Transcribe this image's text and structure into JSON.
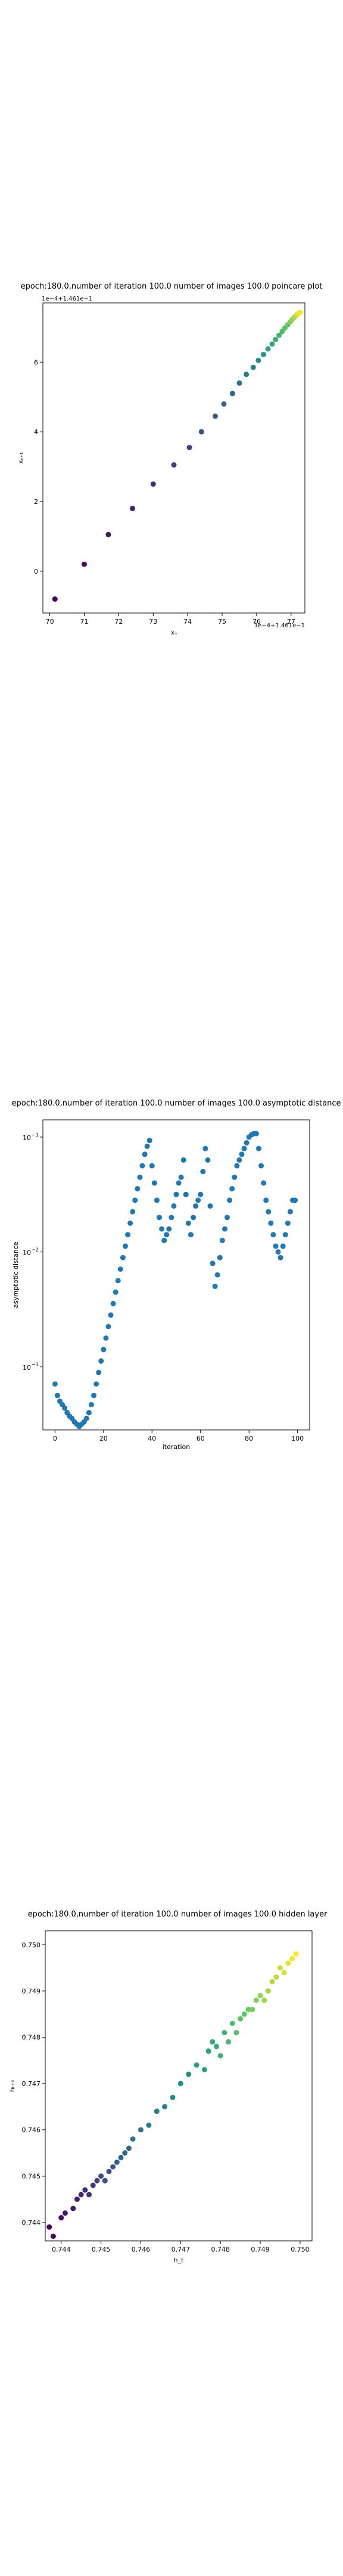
{
  "chart_data": [
    {
      "type": "scatter",
      "title": "epoch:180.0,number of iteration 100.0 number of images 100.0 poincare plot",
      "xlabel": "xₙ",
      "ylabel": "xₙ₊₁",
      "x_ticks": [
        "70",
        "71",
        "72",
        "73",
        "74",
        "75",
        "76",
        "77"
      ],
      "x_tick_values": [
        70,
        71,
        72,
        73,
        74,
        75,
        76,
        77
      ],
      "y_ticks": [
        "0",
        "2",
        "4",
        "6"
      ],
      "y_tick_values": [
        0,
        2,
        4,
        6
      ],
      "x_offset_label": "1e−4+1.461e−1",
      "y_offset_label": "1e−4+1.461e−1",
      "xlim": [
        69.8,
        77.4
      ],
      "ylim": [
        -1.2,
        7.7
      ],
      "colormap": [
        "#440154",
        "#3b528b",
        "#21918c",
        "#5ec962",
        "#fde725"
      ],
      "x": [
        70.15,
        71.0,
        71.7,
        72.4,
        73.0,
        73.6,
        74.05,
        74.4,
        74.8,
        75.05,
        75.3,
        75.5,
        75.7,
        75.9,
        76.05,
        76.2,
        76.33,
        76.45,
        76.55,
        76.65,
        76.74,
        76.82,
        76.9,
        76.97,
        77.03,
        77.09,
        77.14,
        77.18,
        77.22,
        77.26
      ],
      "y": [
        -0.8,
        0.2,
        1.05,
        1.8,
        2.5,
        3.05,
        3.55,
        4.0,
        4.45,
        4.8,
        5.1,
        5.4,
        5.65,
        5.85,
        6.05,
        6.22,
        6.38,
        6.52,
        6.65,
        6.77,
        6.88,
        6.98,
        7.07,
        7.15,
        7.22,
        7.28,
        7.33,
        7.37,
        7.4,
        7.43
      ]
    },
    {
      "type": "scatter",
      "title": "epoch:180.0,number of iteration 100.0  number of images 100.0 asymptotic distance",
      "xlabel": "iteration",
      "ylabel": "asymptotic distance",
      "x_ticks": [
        "0",
        "20",
        "40",
        "60",
        "80",
        "100"
      ],
      "x_tick_values": [
        0,
        20,
        40,
        60,
        80,
        100
      ],
      "y_ticks_base": [
        "10",
        "10",
        "10"
      ],
      "y_ticks_exp": [
        "−3",
        "−2",
        "−1"
      ],
      "y_tick_values": [
        -3,
        -2,
        -1
      ],
      "log_y": true,
      "color": "#1f77b4",
      "xlim": [
        -5,
        105
      ],
      "ylim_log10": [
        -3.55,
        -0.85
      ],
      "x": [
        0,
        1,
        2,
        3,
        4,
        5,
        6,
        7,
        8,
        9,
        10,
        11,
        12,
        13,
        14,
        15,
        16,
        17,
        18,
        19,
        20,
        21,
        22,
        23,
        24,
        25,
        26,
        27,
        28,
        29,
        30,
        31,
        32,
        33,
        34,
        35,
        36,
        37,
        38,
        39,
        40,
        41,
        42,
        43,
        44,
        45,
        46,
        47,
        48,
        49,
        50,
        51,
        52,
        53,
        54,
        55,
        56,
        57,
        58,
        59,
        60,
        61,
        62,
        63,
        64,
        65,
        66,
        67,
        68,
        69,
        70,
        71,
        72,
        73,
        74,
        75,
        76,
        77,
        78,
        79,
        80,
        81,
        82,
        83,
        84,
        85,
        86,
        87,
        88,
        89,
        90,
        91,
        92,
        93,
        94,
        95,
        96,
        97,
        98,
        99
      ],
      "y_log10": [
        -3.15,
        -3.25,
        -3.3,
        -3.33,
        -3.36,
        -3.4,
        -3.43,
        -3.45,
        -3.48,
        -3.5,
        -3.52,
        -3.5,
        -3.48,
        -3.45,
        -3.4,
        -3.33,
        -3.25,
        -3.15,
        -3.05,
        -2.95,
        -2.85,
        -2.75,
        -2.65,
        -2.55,
        -2.45,
        -2.35,
        -2.25,
        -2.15,
        -2.05,
        -1.95,
        -1.85,
        -1.75,
        -1.65,
        -1.55,
        -1.45,
        -1.35,
        -1.25,
        -1.15,
        -1.08,
        -1.03,
        -1.25,
        -1.4,
        -1.55,
        -1.7,
        -1.8,
        -1.9,
        -1.85,
        -1.8,
        -1.7,
        -1.6,
        -1.5,
        -1.4,
        -1.35,
        -1.2,
        -1.5,
        -1.75,
        -1.85,
        -1.7,
        -1.6,
        -1.55,
        -1.5,
        -1.3,
        -1.1,
        -1.2,
        -1.6,
        -2.1,
        -2.3,
        -2.2,
        -2.05,
        -1.9,
        -1.8,
        -1.7,
        -1.55,
        -1.45,
        -1.35,
        -1.25,
        -1.2,
        -1.15,
        -1.1,
        -1.05,
        -1.0,
        -0.98,
        -0.97,
        -0.97,
        -1.1,
        -1.25,
        -1.4,
        -1.55,
        -1.65,
        -1.75,
        -1.85,
        -1.95,
        -2.0,
        -2.05,
        -1.95,
        -1.85,
        -1.75,
        -1.65,
        -1.55,
        -1.55
      ]
    },
    {
      "type": "scatter",
      "title": "epoch:180.0,number of iteration 100.0  number of images 100.0 hidden layer",
      "xlabel": "h_t",
      "ylabel": "hₜ₊₁",
      "x_ticks": [
        "0.744",
        "0.745",
        "0.746",
        "0.747",
        "0.748",
        "0.749",
        "0.750"
      ],
      "x_tick_values": [
        0.744,
        0.745,
        0.746,
        0.747,
        0.748,
        0.749,
        0.75
      ],
      "y_ticks": [
        "0.744",
        "0.745",
        "0.746",
        "0.747",
        "0.748",
        "0.749",
        "0.750"
      ],
      "y_tick_values": [
        0.744,
        0.745,
        0.746,
        0.747,
        0.748,
        0.749,
        0.75
      ],
      "xlim": [
        0.7436,
        0.7503
      ],
      "ylim": [
        0.7436,
        0.7503
      ],
      "colormap": [
        "#440154",
        "#3b528b",
        "#21918c",
        "#5ec962",
        "#fde725"
      ],
      "x": [
        0.7437,
        0.7438,
        0.744,
        0.7441,
        0.7443,
        0.7444,
        0.7445,
        0.7446,
        0.7447,
        0.7448,
        0.7449,
        0.745,
        0.7451,
        0.7452,
        0.7453,
        0.7454,
        0.7455,
        0.7456,
        0.7457,
        0.7458,
        0.746,
        0.7462,
        0.7464,
        0.7466,
        0.7468,
        0.747,
        0.7472,
        0.7474,
        0.7476,
        0.7477,
        0.7478,
        0.7479,
        0.748,
        0.7481,
        0.7482,
        0.7483,
        0.7484,
        0.7485,
        0.7486,
        0.7487,
        0.7488,
        0.7489,
        0.749,
        0.7491,
        0.7492,
        0.7493,
        0.7494,
        0.7495,
        0.7496,
        0.7497,
        0.7498,
        0.7499
      ],
      "y": [
        0.7439,
        0.7437,
        0.7441,
        0.7442,
        0.7443,
        0.7445,
        0.7446,
        0.7447,
        0.7446,
        0.7448,
        0.7449,
        0.745,
        0.7449,
        0.7451,
        0.7452,
        0.7453,
        0.7454,
        0.7455,
        0.7456,
        0.7458,
        0.746,
        0.7461,
        0.7464,
        0.7465,
        0.7467,
        0.747,
        0.7472,
        0.7474,
        0.7473,
        0.7477,
        0.7479,
        0.7478,
        0.7476,
        0.7481,
        0.7479,
        0.7483,
        0.7481,
        0.7484,
        0.7485,
        0.7486,
        0.7486,
        0.7488,
        0.7489,
        0.7488,
        0.749,
        0.7492,
        0.7493,
        0.7495,
        0.7494,
        0.7496,
        0.7497,
        0.7498
      ]
    }
  ]
}
